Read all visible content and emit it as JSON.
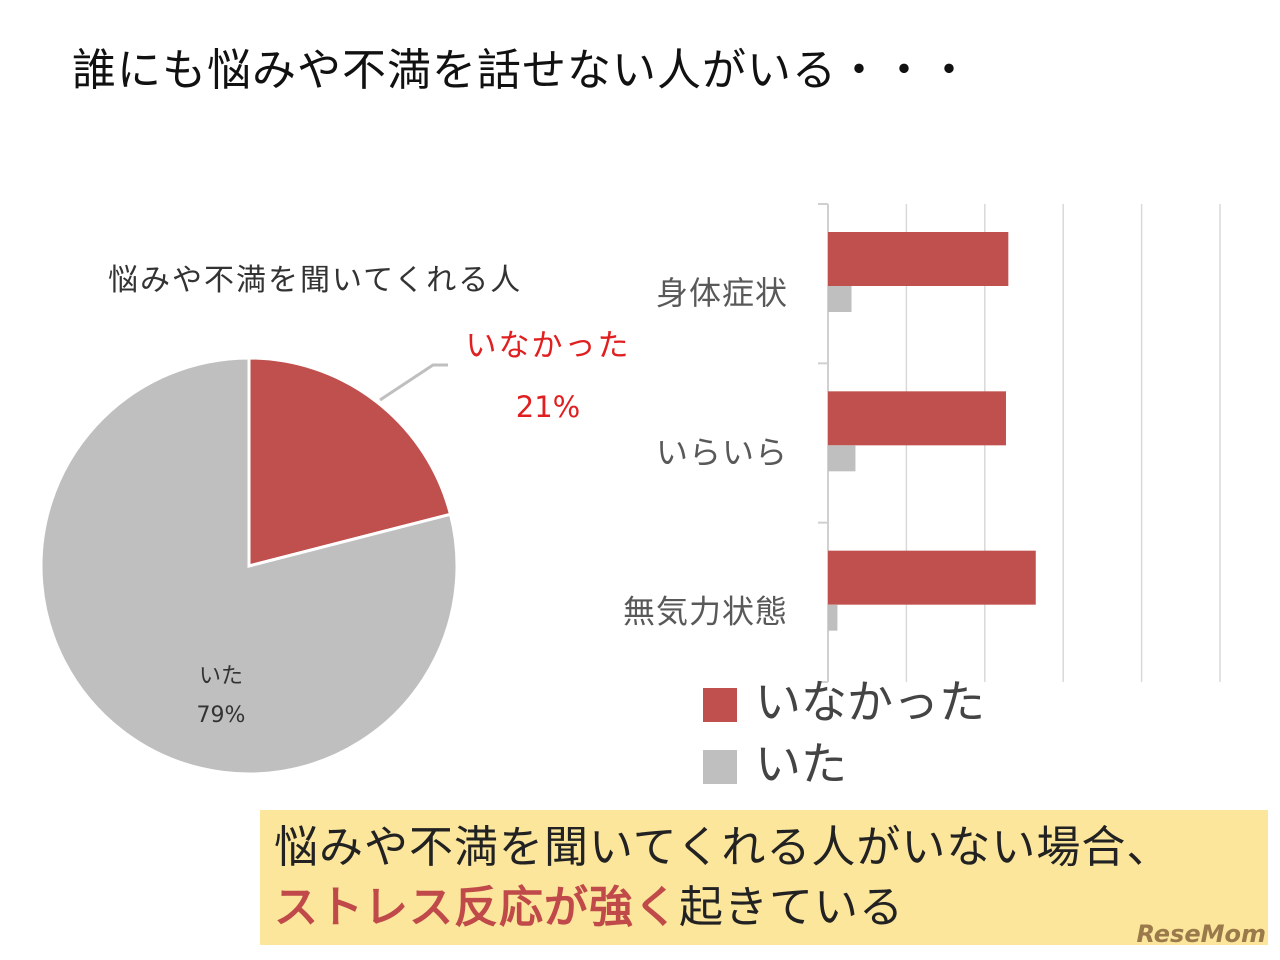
{
  "title": "誰にも悩みや不満を話せない人がいる・・・",
  "colors": {
    "red": "#c0504d",
    "gray": "#bfbfbf",
    "highlight": "#fbe69c",
    "accent_text": "#c04a4a",
    "callout_red": "#e02020"
  },
  "chart_data": [
    {
      "type": "pie",
      "title": "悩みや不満を聞いてくれる人",
      "slices": [
        {
          "label": "いなかった",
          "value": 21,
          "display": "21%",
          "color": "#c0504d"
        },
        {
          "label": "いた",
          "value": 79,
          "display": "79%",
          "color": "#bfbfbf"
        }
      ]
    },
    {
      "type": "bar",
      "orientation": "horizontal",
      "categories": [
        "身体症状",
        "いらいら",
        "無気力状態"
      ],
      "series": [
        {
          "name": "いなかった",
          "color": "#c0504d",
          "values": [
            2.3,
            2.27,
            2.65
          ]
        },
        {
          "name": "いた",
          "color": "#bfbfbf",
          "values": [
            0.3,
            0.35,
            0.12
          ]
        }
      ],
      "xlim": [
        0,
        5
      ],
      "grid": true,
      "legend_position": "bottom"
    }
  ],
  "takeaway": {
    "line1": "悩みや不満を聞いてくれる人がいない場合、",
    "line2_strong": "ストレス反応が強く",
    "line2_rest": "起きている"
  },
  "logo": "ReseMom"
}
